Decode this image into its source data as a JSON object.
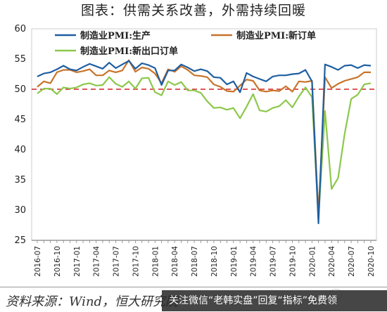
{
  "title": "图表：供需关系改善，外需持续回暖",
  "source": "资料来源：Wind，恒大研究院",
  "watermark": "关注微信“老韩实盘”回复“指标”免费领",
  "chart_data": {
    "type": "line",
    "x": [
      "2016-07",
      "2016-08",
      "2016-09",
      "2016-10",
      "2016-11",
      "2016-12",
      "2017-01",
      "2017-02",
      "2017-03",
      "2017-04",
      "2017-05",
      "2017-06",
      "2017-07",
      "2017-08",
      "2017-09",
      "2017-10",
      "2017-11",
      "2017-12",
      "2018-01",
      "2018-02",
      "2018-03",
      "2018-04",
      "2018-05",
      "2018-06",
      "2018-07",
      "2018-08",
      "2018-09",
      "2018-10",
      "2018-11",
      "2018-12",
      "2019-01",
      "2019-02",
      "2019-03",
      "2019-04",
      "2019-05",
      "2019-06",
      "2019-07",
      "2019-08",
      "2019-09",
      "2019-10",
      "2019-11",
      "2019-12",
      "2020-01",
      "2020-02",
      "2020-03",
      "2020-04",
      "2020-05",
      "2020-06",
      "2020-07",
      "2020-08",
      "2020-09",
      "2020-10"
    ],
    "xticks": [
      "2016-07",
      "2016-10",
      "2017-01",
      "2017-04",
      "2017-07",
      "2017-10",
      "2018-01",
      "2018-04",
      "2018-07",
      "2018-10",
      "2019-01",
      "2019-04",
      "2019-07",
      "2019-10",
      "2020-01",
      "2020-04",
      "2020-07",
      "2020-10"
    ],
    "ylim": [
      25,
      60
    ],
    "yticks": [
      25,
      30,
      35,
      40,
      45,
      50,
      55,
      60
    ],
    "reference_line": 50,
    "legend_position": "top-left",
    "series": [
      {
        "name": "制造业PMI:生产",
        "color": "#1f5fa0",
        "values": [
          52.1,
          52.6,
          52.8,
          53.3,
          53.9,
          53.3,
          53.1,
          53.7,
          54.2,
          53.8,
          53.4,
          54.4,
          53.5,
          54.1,
          54.7,
          53.4,
          54.3,
          54.0,
          53.5,
          50.7,
          53.1,
          53.1,
          54.1,
          53.6,
          53.0,
          53.3,
          53.0,
          52.0,
          51.9,
          50.8,
          51.3,
          49.5,
          52.7,
          52.1,
          51.7,
          51.3,
          52.1,
          52.3,
          52.3,
          52.5,
          52.6,
          53.2,
          51.3,
          27.8,
          54.1,
          53.7,
          53.2,
          53.9,
          54.0,
          53.5,
          54.0,
          53.9
        ]
      },
      {
        "name": "制造业PMI:新订单",
        "color": "#c8732a",
        "values": [
          50.4,
          51.3,
          51.0,
          52.8,
          53.2,
          53.2,
          52.8,
          53.0,
          53.3,
          52.3,
          52.3,
          53.1,
          52.8,
          53.1,
          54.8,
          52.9,
          53.6,
          53.4,
          52.6,
          51.0,
          53.3,
          52.9,
          53.8,
          53.2,
          52.3,
          52.2,
          52.0,
          50.8,
          50.4,
          49.7,
          49.6,
          50.6,
          51.6,
          51.4,
          49.8,
          49.6,
          49.8,
          49.7,
          50.5,
          49.6,
          51.3,
          51.2,
          51.4,
          29.3,
          52.0,
          50.2,
          50.9,
          51.4,
          51.7,
          52.0,
          52.8,
          52.8
        ]
      },
      {
        "name": "制造业PMI:新出口订单",
        "color": "#8cc84b",
        "values": [
          49.3,
          50.1,
          50.1,
          49.2,
          50.3,
          50.1,
          50.3,
          50.8,
          51.0,
          50.6,
          50.7,
          52.0,
          50.9,
          50.4,
          51.3,
          50.1,
          51.8,
          51.9,
          49.5,
          49.0,
          51.3,
          50.7,
          51.2,
          49.8,
          49.8,
          49.4,
          48.0,
          46.9,
          47.0,
          46.6,
          46.9,
          45.2,
          47.1,
          49.2,
          46.5,
          46.3,
          46.9,
          47.2,
          48.2,
          47.0,
          48.8,
          50.3,
          48.7,
          28.7,
          46.4,
          33.5,
          35.3,
          42.6,
          48.4,
          49.1,
          50.8,
          51.0
        ]
      }
    ]
  }
}
